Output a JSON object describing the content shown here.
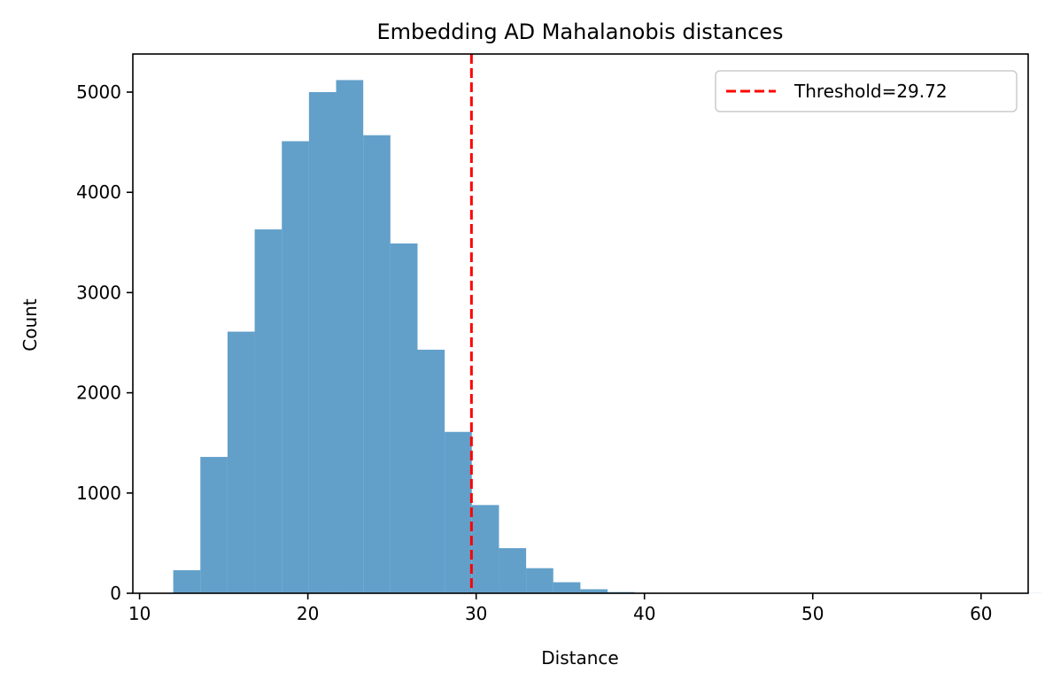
{
  "chart_data": {
    "type": "bar",
    "subtype": "histogram",
    "title": "Embedding AD Mahalanobis distances",
    "xlabel": "Distance",
    "ylabel": "Count",
    "xlim": [
      9.6,
      62.8
    ],
    "ylim": [
      0,
      5380
    ],
    "xticks": [
      10,
      20,
      30,
      40,
      50,
      60
    ],
    "yticks": [
      0,
      1000,
      2000,
      3000,
      4000,
      5000
    ],
    "bin_start": 12.0,
    "bin_width": 1.613,
    "counts": [
      230,
      1360,
      2610,
      3630,
      4510,
      5000,
      5120,
      4570,
      3490,
      2430,
      1610,
      880,
      450,
      250,
      110,
      40,
      12,
      5,
      3,
      2,
      1,
      1,
      1,
      0,
      0,
      0,
      0,
      0,
      0,
      0,
      0,
      1
    ],
    "bar_color": "#1f77b4",
    "bar_alpha": 0.7,
    "threshold": 29.72,
    "threshold_color": "#ff0000",
    "legend": {
      "label": "Threshold=29.72",
      "position": "top-right"
    },
    "grid": false
  }
}
